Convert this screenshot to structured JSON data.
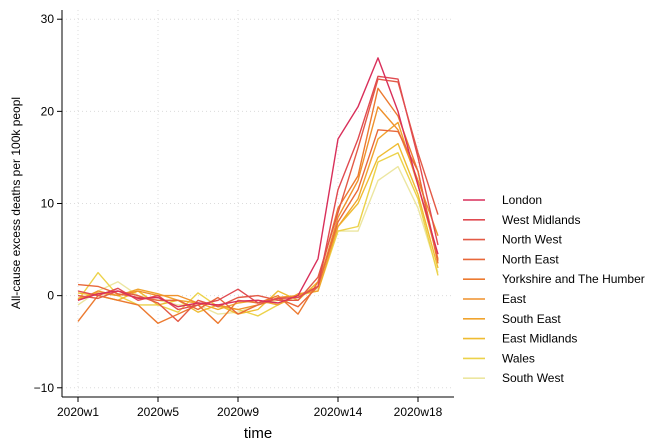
{
  "chart_data": {
    "type": "line",
    "xlabel": "time",
    "ylabel": "All-cause excess deaths per 100k peopl",
    "x": [
      "2020w1",
      "2020w2",
      "2020w3",
      "2020w4",
      "2020w5",
      "2020w6",
      "2020w7",
      "2020w8",
      "2020w9",
      "2020w10",
      "2020w11",
      "2020w12",
      "2020w13",
      "2020w14",
      "2020w15",
      "2020w16",
      "2020w17",
      "2020w18",
      "2020w19"
    ],
    "x_ticks": [
      "2020w1",
      "2020w5",
      "2020w9",
      "2020w14",
      "2020w18"
    ],
    "y_ticks": [
      -10,
      0,
      10,
      20,
      30
    ],
    "ylim": [
      -11,
      31
    ],
    "grid": true,
    "legend_position": "right",
    "series": [
      {
        "name": "London",
        "color": "#d92f5a",
        "values": [
          -0.5,
          0.2,
          0.5,
          -0.3,
          -0.2,
          -1.2,
          -0.8,
          -1.0,
          -0.6,
          -0.5,
          -0.8,
          0.0,
          4.0,
          17.0,
          20.5,
          25.8,
          20.0,
          12.0,
          4.5
        ]
      },
      {
        "name": "West Midlands",
        "color": "#e04a50",
        "values": [
          0.5,
          0.0,
          0.8,
          -0.5,
          0.0,
          -1.5,
          -1.0,
          -0.5,
          0.7,
          -0.8,
          -0.3,
          -0.2,
          1.0,
          11.5,
          17.0,
          23.8,
          23.5,
          15.0,
          5.5
        ]
      },
      {
        "name": "North West",
        "color": "#e35a46",
        "values": [
          0.0,
          -0.3,
          0.5,
          0.0,
          -0.8,
          -2.8,
          -0.5,
          -1.2,
          -0.2,
          0.0,
          -0.5,
          -0.5,
          2.0,
          9.0,
          16.0,
          23.5,
          23.2,
          15.5,
          8.8
        ]
      },
      {
        "name": "North East",
        "color": "#e8683a",
        "values": [
          1.2,
          1.0,
          0.2,
          -0.2,
          -0.5,
          -0.5,
          -1.5,
          -0.2,
          -2.0,
          -1.0,
          -0.3,
          -1.2,
          1.0,
          8.0,
          11.5,
          18.0,
          17.8,
          13.5,
          3.8
        ]
      },
      {
        "name": "Yorkshire and The Humber",
        "color": "#ec7a30",
        "values": [
          -2.8,
          0.0,
          -0.5,
          -1.0,
          -3.0,
          -2.0,
          -1.0,
          -3.0,
          -0.5,
          -0.8,
          0.0,
          -2.0,
          1.5,
          9.5,
          13.0,
          22.5,
          19.5,
          13.5,
          3.5
        ]
      },
      {
        "name": "East",
        "color": "#ef912c",
        "values": [
          -0.5,
          0.5,
          0.0,
          0.5,
          0.0,
          0.0,
          -0.8,
          -1.0,
          -1.5,
          -1.0,
          -0.2,
          0.0,
          1.0,
          8.5,
          12.5,
          20.5,
          18.0,
          12.5,
          6.5
        ]
      },
      {
        "name": "South East",
        "color": "#f0a42e",
        "values": [
          -0.3,
          0.3,
          0.0,
          0.7,
          0.2,
          -0.5,
          -0.8,
          -1.5,
          -0.8,
          -0.5,
          -1.0,
          0.2,
          0.5,
          7.5,
          10.5,
          17.0,
          18.8,
          12.0,
          4.0
        ]
      },
      {
        "name": "East Midlands",
        "color": "#efbc32",
        "values": [
          0.3,
          0.0,
          -0.5,
          0.5,
          -1.0,
          -0.5,
          -1.8,
          -1.0,
          -2.0,
          -1.5,
          0.5,
          -0.5,
          1.5,
          7.5,
          10.0,
          15.0,
          16.5,
          11.0,
          3.0
        ]
      },
      {
        "name": "Wales",
        "color": "#ecd24a",
        "values": [
          -0.5,
          2.5,
          0.0,
          -1.0,
          -1.0,
          -1.8,
          0.3,
          -1.2,
          -1.5,
          -2.2,
          -1.0,
          0.0,
          0.5,
          7.0,
          7.5,
          14.5,
          15.5,
          10.5,
          2.2
        ]
      },
      {
        "name": "South West",
        "color": "#ece6a0",
        "values": [
          -1.0,
          0.5,
          1.5,
          0.0,
          -0.5,
          -1.0,
          -1.0,
          -2.0,
          -1.8,
          -1.0,
          -0.5,
          0.0,
          0.8,
          7.0,
          7.0,
          12.5,
          14.0,
          9.5,
          2.5
        ]
      }
    ]
  }
}
